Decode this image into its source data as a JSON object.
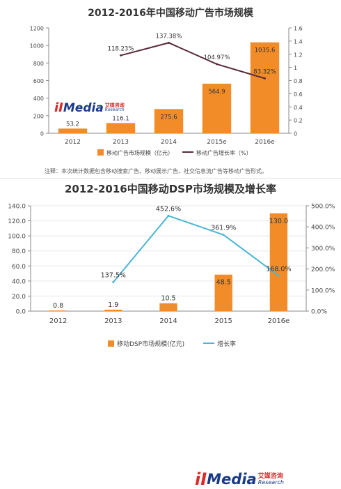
{
  "colors": {
    "bar": "#f28c28",
    "line1": "#5b2a3a",
    "line2": "#4bb6d6",
    "axis": "#888888",
    "grid": "#e8e8e8"
  },
  "logo": {
    "mark": "iI",
    "word": "Media",
    "cn": "艾媒咨询",
    "en": "Research"
  },
  "chart_data": [
    {
      "type": "bar",
      "title": "2012-2016年中国移动广告市场规模",
      "categories": [
        "2012",
        "2013",
        "2014",
        "2015e",
        "2016e"
      ],
      "series": [
        {
          "name": "移动广告市场规模（亿元）",
          "type": "bar",
          "axis": "left",
          "values": [
            53.2,
            116.1,
            275.6,
            564.9,
            1035.6
          ],
          "labels": [
            "53.2",
            "116.1",
            "275.6",
            "564.9",
            "1035.6"
          ]
        },
        {
          "name": "移动广告增长率（%）",
          "type": "line",
          "axis": "right",
          "values": [
            null,
            1.1823,
            1.3738,
            1.0497,
            0.8332
          ],
          "labels": [
            "",
            "118.23%",
            "137.38%",
            "104.97%",
            "83.32%"
          ]
        }
      ],
      "ylim": [
        0,
        1200
      ],
      "yticks": [
        "0",
        "200",
        "400",
        "600",
        "800",
        "1000",
        "1200"
      ],
      "y2lim": [
        0,
        1.6
      ],
      "y2ticks": [
        "0",
        "0.2",
        "0.4",
        "0.6",
        "0.8",
        "1",
        "1.2",
        "1.4",
        "1.6"
      ],
      "grid": false,
      "legend": "bottom",
      "note": "注释：本次统计数据包含移动搜索广告、移动展示广告、社交信息流广告等移动广告形式。"
    },
    {
      "type": "bar",
      "title": "2012-2016中国移动DSP市场规模及增长率",
      "categories": [
        "2012",
        "2013",
        "2014",
        "2015",
        "2016e"
      ],
      "series": [
        {
          "name": "移动DSP市场规模(亿元)",
          "type": "bar",
          "axis": "left",
          "values": [
            0.8,
            1.9,
            10.5,
            48.5,
            130.0
          ],
          "labels": [
            "0.8",
            "1.9",
            "10.5",
            "48.5",
            "130.0"
          ]
        },
        {
          "name": "增长率",
          "type": "line",
          "axis": "right",
          "values": [
            null,
            137.5,
            452.6,
            361.9,
            168.0
          ],
          "labels": [
            "",
            "137.5%",
            "452.6%",
            "361.9%",
            "168.0%"
          ]
        }
      ],
      "ylim": [
        0,
        140
      ],
      "yticks": [
        "0.0",
        "20.0",
        "40.0",
        "60.0",
        "80.0",
        "100.0",
        "120.0",
        "140.0"
      ],
      "y2lim": [
        0,
        500
      ],
      "y2ticks": [
        "0.0%",
        "100.0%",
        "200.0%",
        "300.0%",
        "400.0%",
        "500.0%"
      ],
      "grid": true,
      "legend": "bottom"
    }
  ]
}
